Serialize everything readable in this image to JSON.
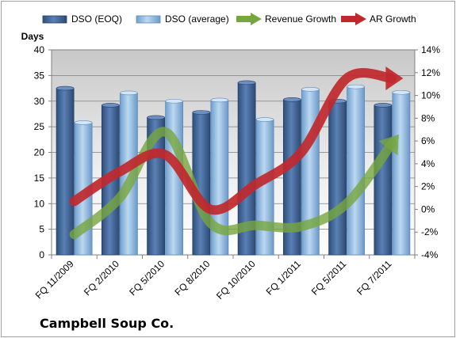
{
  "chart_data": {
    "type": "bar",
    "title": "",
    "company_label": "Campbell Soup Co.",
    "ylabel": "Days",
    "y2label": "",
    "ylim": [
      0,
      40
    ],
    "y2lim": [
      -4,
      14
    ],
    "yticks": [
      "0",
      "5",
      "10",
      "15",
      "20",
      "25",
      "30",
      "35",
      "40"
    ],
    "y2ticks": [
      "-4%",
      "-2%",
      "0%",
      "2%",
      "4%",
      "6%",
      "8%",
      "10%",
      "12%",
      "14%"
    ],
    "categories": [
      "FQ 11/2009",
      "FQ 2/2010",
      "FQ 5/2010",
      "FQ 8/2010",
      "FQ 10/2010",
      "FQ 1/2011",
      "FQ 5/2011",
      "FQ 7/2011"
    ],
    "series": [
      {
        "name": "DSO (EOQ)",
        "kind": "bar",
        "axis": "left",
        "color": "#4a6fa5",
        "values": [
          32.5,
          29.2,
          26.8,
          27.8,
          33.6,
          30.3,
          30.0,
          29.2
        ]
      },
      {
        "name": "DSO (average)",
        "kind": "bar",
        "axis": "left",
        "color": "#9dc3e6",
        "values": [
          25.8,
          31.6,
          30.0,
          30.2,
          26.4,
          32.3,
          32.8,
          31.7
        ]
      },
      {
        "name": "Revenue Growth",
        "kind": "line",
        "axis": "right",
        "unit": "%",
        "color": "#77a63f",
        "values": [
          -2.2,
          1.0,
          6.8,
          -1.2,
          -1.4,
          -1.5,
          0.5,
          5.8
        ]
      },
      {
        "name": "AR Growth",
        "kind": "line",
        "axis": "right",
        "unit": "%",
        "color": "#c0282d",
        "values": [
          0.7,
          3.3,
          4.8,
          0.0,
          2.2,
          5.0,
          11.5,
          11.5
        ]
      }
    ],
    "legend_position": "top",
    "grid": true
  }
}
